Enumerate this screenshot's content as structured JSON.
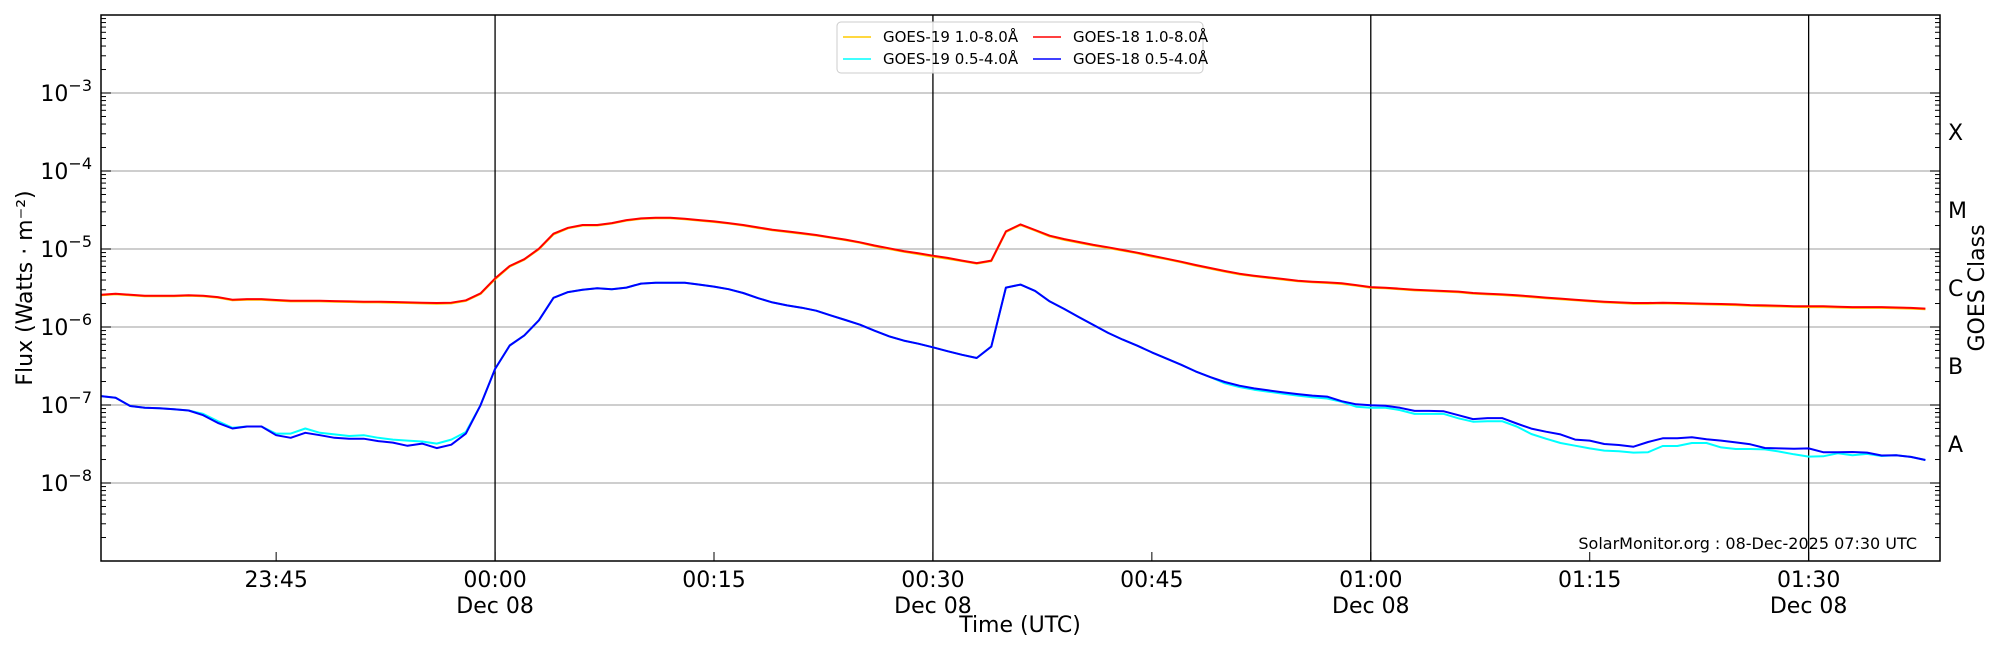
{
  "chart_data": {
    "type": "line",
    "title": "",
    "xlabel": "Time (UTC)",
    "ylabel": "Flux (Watts · m⁻²)",
    "y2label": "GOES Class",
    "yscale": "log",
    "ylim": [
      1e-09,
      0.01
    ],
    "xlim": [
      "23:33",
      "01:39"
    ],
    "x_start": "23:33",
    "cadence_minutes": 1,
    "grid": true,
    "legend_position": "top-center",
    "yticks": [
      {
        "value": 0.001,
        "base": "10",
        "exp": "−3"
      },
      {
        "value": 0.0001,
        "base": "10",
        "exp": "−4"
      },
      {
        "value": 1e-05,
        "base": "10",
        "exp": "−5"
      },
      {
        "value": 1e-06,
        "base": "10",
        "exp": "−6"
      },
      {
        "value": 1e-07,
        "base": "10",
        "exp": "−7"
      },
      {
        "value": 1e-08,
        "base": "10",
        "exp": "−8"
      }
    ],
    "xticks": [
      {
        "offset_min": 12,
        "time": "23:45",
        "date": ""
      },
      {
        "offset_min": 27,
        "time": "00:00",
        "date": "Dec 08"
      },
      {
        "offset_min": 42,
        "time": "00:15",
        "date": ""
      },
      {
        "offset_min": 57,
        "time": "00:30",
        "date": "Dec 08"
      },
      {
        "offset_min": 72,
        "time": "00:45",
        "date": ""
      },
      {
        "offset_min": 87,
        "time": "01:00",
        "date": "Dec 08"
      },
      {
        "offset_min": 102,
        "time": "01:15",
        "date": ""
      },
      {
        "offset_min": 117,
        "time": "01:30",
        "date": "Dec 08"
      }
    ],
    "vlines_offset_min": [
      27,
      57,
      87,
      117
    ],
    "goes_classes": [
      {
        "label": "X",
        "value": 0.000316
      },
      {
        "label": "M",
        "value": 3.16e-05
      },
      {
        "label": "C",
        "value": 3.16e-06
      },
      {
        "label": "B",
        "value": 3.16e-07
      },
      {
        "label": "A",
        "value": 3.16e-08
      }
    ],
    "annotation": "SolarMonitor.org : 08-Dec-2025 07:30 UTC",
    "series": [
      {
        "name": "GOES-19 1.0-8.0Å",
        "color": "#ffcc00",
        "values": [
          2.55e-06,
          2.63e-06,
          2.55e-06,
          2.48e-06,
          2.48e-06,
          2.48e-06,
          2.51e-06,
          2.48e-06,
          2.38e-06,
          2.2e-06,
          2.24e-06,
          2.24e-06,
          2.18e-06,
          2.13e-06,
          2.13e-06,
          2.13e-06,
          2.11e-06,
          2.09e-06,
          2.07e-06,
          2.07e-06,
          2.05e-06,
          2.03e-06,
          2.01e-06,
          1.99e-06,
          2.01e-06,
          2.16e-06,
          2.65e-06,
          4.1e-06,
          5.95e-06,
          7.3e-06,
          9.9e-06,
          1.54e-05,
          1.84e-05,
          2e-05,
          2e-05,
          2.12e-05,
          2.31e-05,
          2.43e-05,
          2.48e-05,
          2.48e-05,
          2.4e-05,
          2.31e-05,
          2.22e-05,
          2.12e-05,
          2e-05,
          1.86e-05,
          1.74e-05,
          1.65e-05,
          1.57e-05,
          1.49e-05,
          1.39e-05,
          1.3e-05,
          1.2e-05,
          1.09e-05,
          1e-05,
          9.2e-06,
          8.6e-06,
          8e-06,
          7.5e-06,
          7e-06,
          6.5e-06,
          7e-06,
          1.65e-05,
          2.03e-05,
          1.72e-05,
          1.45e-05,
          1.31e-05,
          1.2e-05,
          1.11e-05,
          1.03e-05,
          9.5e-06,
          8.8e-06,
          8e-06,
          7.4e-06,
          6.75e-06,
          6.1e-06,
          5.6e-06,
          5.13e-06,
          4.73e-06,
          4.47e-06,
          4.25e-06,
          4.05e-06,
          3.85e-06,
          3.74e-06,
          3.66e-06,
          3.56e-06,
          3.39e-06,
          3.19e-06,
          3.13e-06,
          3.04e-06,
          2.95e-06,
          2.9e-06,
          2.84e-06,
          2.79e-06,
          2.68e-06,
          2.62e-06,
          2.57e-06,
          2.5e-06,
          2.42e-06,
          2.33e-06,
          2.27e-06,
          2.2e-06,
          2.13e-06,
          2.07e-06,
          2.03e-06,
          1.99e-06,
          1.99e-06,
          2.01e-06,
          1.99e-06,
          1.97e-06,
          1.95e-06,
          1.93e-06,
          1.91e-06,
          1.87e-06,
          1.85e-06,
          1.83e-06,
          1.81e-06,
          1.8e-06,
          1.8e-06,
          1.78e-06,
          1.76e-06,
          1.76e-06,
          1.76e-06,
          1.74e-06,
          1.72e-06,
          1.69e-06
        ]
      },
      {
        "name": "GOES-18 1.0-8.0Å",
        "color": "#ff0000",
        "values": [
          2.59e-06,
          2.67e-06,
          2.59e-06,
          2.52e-06,
          2.52e-06,
          2.52e-06,
          2.55e-06,
          2.52e-06,
          2.42e-06,
          2.24e-06,
          2.28e-06,
          2.28e-06,
          2.22e-06,
          2.17e-06,
          2.17e-06,
          2.17e-06,
          2.15e-06,
          2.13e-06,
          2.11e-06,
          2.11e-06,
          2.09e-06,
          2.07e-06,
          2.05e-06,
          2.03e-06,
          2.05e-06,
          2.2e-06,
          2.7e-06,
          4.2e-06,
          6.05e-06,
          7.4e-06,
          1.01e-05,
          1.57e-05,
          1.87e-05,
          2.03e-05,
          2.03e-05,
          2.15e-05,
          2.35e-05,
          2.47e-05,
          2.52e-05,
          2.52e-05,
          2.44e-05,
          2.35e-05,
          2.26e-05,
          2.15e-05,
          2.03e-05,
          1.89e-05,
          1.77e-05,
          1.68e-05,
          1.6e-05,
          1.51e-05,
          1.41e-05,
          1.32e-05,
          1.22e-05,
          1.11e-05,
          1.02e-05,
          9.4e-06,
          8.8e-06,
          8.2e-06,
          7.7e-06,
          7.1e-06,
          6.6e-06,
          7.1e-06,
          1.68e-05,
          2.07e-05,
          1.75e-05,
          1.48e-05,
          1.34e-05,
          1.23e-05,
          1.13e-05,
          1.05e-05,
          9.7e-06,
          8.97e-06,
          8.2e-06,
          7.5e-06,
          6.87e-06,
          6.23e-06,
          5.71e-06,
          5.22e-06,
          4.82e-06,
          4.55e-06,
          4.33e-06,
          4.12e-06,
          3.92e-06,
          3.81e-06,
          3.73e-06,
          3.63e-06,
          3.45e-06,
          3.25e-06,
          3.19e-06,
          3.1e-06,
          3.01e-06,
          2.95e-06,
          2.89e-06,
          2.84e-06,
          2.73e-06,
          2.67e-06,
          2.62e-06,
          2.55e-06,
          2.47e-06,
          2.38e-06,
          2.31e-06,
          2.24e-06,
          2.17e-06,
          2.11e-06,
          2.07e-06,
          2.03e-06,
          2.03e-06,
          2.05e-06,
          2.03e-06,
          2.01e-06,
          1.99e-06,
          1.97e-06,
          1.95e-06,
          1.91e-06,
          1.89e-06,
          1.87e-06,
          1.85e-06,
          1.84e-06,
          1.84e-06,
          1.82e-06,
          1.8e-06,
          1.8e-06,
          1.8e-06,
          1.78e-06,
          1.76e-06,
          1.72e-06
        ]
      },
      {
        "name": "GOES-19 0.5-4.0Å",
        "color": "#00ffff",
        "values": [
          1.3e-07,
          1.24e-07,
          9.7e-08,
          9.2e-08,
          9.1e-08,
          8.8e-08,
          8.5e-08,
          7.7e-08,
          6.2e-08,
          5.1e-08,
          5.3e-08,
          5.3e-08,
          4.3e-08,
          4.3e-08,
          5e-08,
          4.4e-08,
          4.2e-08,
          4e-08,
          4.1e-08,
          3.8e-08,
          3.6e-08,
          3.5e-08,
          3.4e-08,
          3.2e-08,
          3.6e-08,
          4.5e-08,
          9.9e-08,
          2.9e-07,
          5.8e-07,
          7.8e-07,
          1.22e-06,
          2.37e-06,
          2.8e-06,
          3e-06,
          3.13e-06,
          3.05e-06,
          3.2e-06,
          3.6e-06,
          3.7e-06,
          3.7e-06,
          3.7e-06,
          3.5e-06,
          3.3e-06,
          3.05e-06,
          2.73e-06,
          2.35e-06,
          2.07e-06,
          1.89e-06,
          1.77e-06,
          1.62e-06,
          1.41e-06,
          1.23e-06,
          1.07e-06,
          8.97e-07,
          7.6e-07,
          6.7e-07,
          6.1e-07,
          5.5e-07,
          4.9e-07,
          4.4e-07,
          4e-07,
          5.6e-07,
          3.2e-06,
          3.5e-06,
          2.9e-06,
          2.13e-06,
          1.7e-06,
          1.34e-06,
          1.06e-06,
          8.4e-07,
          6.9e-07,
          5.75e-07,
          4.73e-07,
          3.93e-07,
          3.29e-07,
          2.7e-07,
          2.28e-07,
          1.9e-07,
          1.7e-07,
          1.57e-07,
          1.48e-07,
          1.39e-07,
          1.32e-07,
          1.26e-07,
          1.21e-07,
          1.1e-07,
          9.5e-08,
          9.2e-08,
          9.2e-08,
          8.6e-08,
          7.7e-08,
          7.7e-08,
          7.7e-08,
          6.75e-08,
          6.1e-08,
          6.2e-08,
          6.2e-08,
          5.3e-08,
          4.25e-08,
          3.7e-08,
          3.26e-08,
          3.01e-08,
          2.78e-08,
          2.6e-08,
          2.55e-08,
          2.45e-08,
          2.48e-08,
          2.98e-08,
          2.98e-08,
          3.26e-08,
          3.26e-08,
          2.86e-08,
          2.73e-08,
          2.73e-08,
          2.7e-08,
          2.53e-08,
          2.33e-08,
          2.18e-08,
          2.2e-08,
          2.4e-08,
          2.27e-08,
          2.36e-08,
          2.22e-08,
          2.27e-08,
          2.16e-08,
          1.97e-08
        ]
      },
      {
        "name": "GOES-18 0.5-4.0Å",
        "color": "#0000ff",
        "values": [
          1.3e-07,
          1.24e-07,
          9.7e-08,
          9.2e-08,
          9.1e-08,
          8.8e-08,
          8.5e-08,
          7.4e-08,
          5.9e-08,
          5e-08,
          5.3e-08,
          5.3e-08,
          4.1e-08,
          3.8e-08,
          4.4e-08,
          4.1e-08,
          3.8e-08,
          3.7e-08,
          3.7e-08,
          3.45e-08,
          3.3e-08,
          3e-08,
          3.2e-08,
          2.8e-08,
          3.1e-08,
          4.3e-08,
          9.9e-08,
          2.9e-07,
          5.8e-07,
          7.8e-07,
          1.22e-06,
          2.37e-06,
          2.8e-06,
          3e-06,
          3.13e-06,
          3.05e-06,
          3.2e-06,
          3.6e-06,
          3.7e-06,
          3.7e-06,
          3.7e-06,
          3.5e-06,
          3.3e-06,
          3.05e-06,
          2.73e-06,
          2.35e-06,
          2.07e-06,
          1.89e-06,
          1.77e-06,
          1.62e-06,
          1.41e-06,
          1.23e-06,
          1.07e-06,
          8.97e-07,
          7.6e-07,
          6.7e-07,
          6.1e-07,
          5.5e-07,
          4.9e-07,
          4.4e-07,
          4e-07,
          5.6e-07,
          3.2e-06,
          3.5e-06,
          2.9e-06,
          2.13e-06,
          1.7e-06,
          1.34e-06,
          1.06e-06,
          8.4e-07,
          6.9e-07,
          5.75e-07,
          4.73e-07,
          3.93e-07,
          3.29e-07,
          2.7e-07,
          2.28e-07,
          1.97e-07,
          1.77e-07,
          1.63e-07,
          1.54e-07,
          1.45e-07,
          1.38e-07,
          1.32e-07,
          1.28e-07,
          1.12e-07,
          1.02e-07,
          9.9e-08,
          9.8e-08,
          9.2e-08,
          8.4e-08,
          8.4e-08,
          8.3e-08,
          7.4e-08,
          6.6e-08,
          6.8e-08,
          6.8e-08,
          5.8e-08,
          4.98e-08,
          4.55e-08,
          4.2e-08,
          3.6e-08,
          3.5e-08,
          3.16e-08,
          3.07e-08,
          2.92e-08,
          3.35e-08,
          3.74e-08,
          3.74e-08,
          3.85e-08,
          3.63e-08,
          3.5e-08,
          3.32e-08,
          3.13e-08,
          2.81e-08,
          2.78e-08,
          2.75e-08,
          2.78e-08,
          2.48e-08,
          2.48e-08,
          2.5e-08,
          2.45e-08,
          2.25e-08,
          2.27e-08,
          2.16e-08,
          1.97e-08
        ]
      }
    ],
    "legend_order": [
      0,
      2,
      1,
      3
    ],
    "colors": {
      "grid": "#b0b0b0",
      "axis": "#000000",
      "vline": "#000000"
    }
  }
}
